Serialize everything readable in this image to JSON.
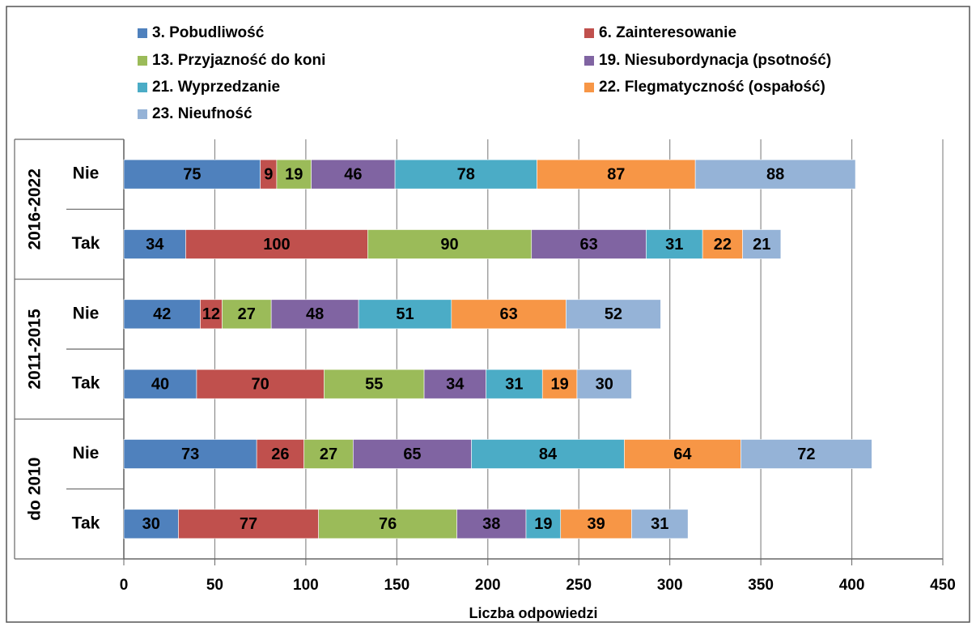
{
  "chart_data": {
    "type": "stacked_barh",
    "x_label": "Liczba odpowiedzi",
    "groups": [
      "2016-2022",
      "2011-2015",
      "do 2010"
    ],
    "categories": [
      "Nie",
      "Tak",
      "Nie",
      "Tak",
      "Nie",
      "Tak"
    ],
    "series": [
      {
        "name": "3. Pobudliwość",
        "color": "#4f81bd",
        "values": [
          75,
          34,
          42,
          40,
          73,
          30
        ]
      },
      {
        "name": "6. Zainteresowanie",
        "color": "#c0504d",
        "values": [
          9,
          100,
          12,
          70,
          26,
          77
        ]
      },
      {
        "name": "13. Przyjazność do koni",
        "color": "#9bbb59",
        "values": [
          19,
          90,
          27,
          55,
          27,
          76
        ]
      },
      {
        "name": "19. Niesubordynacja (psotność)",
        "color": "#8064a2",
        "values": [
          46,
          63,
          48,
          34,
          65,
          38
        ]
      },
      {
        "name": "21. Wyprzedzanie",
        "color": "#4bacc6",
        "values": [
          78,
          31,
          51,
          31,
          84,
          19
        ]
      },
      {
        "name": "22. Flegmatyczność (ospałość)",
        "color": "#f79646",
        "values": [
          87,
          22,
          63,
          19,
          64,
          39
        ]
      },
      {
        "name": "23. Nieufność",
        "color": "#95b3d7",
        "values": [
          88,
          21,
          52,
          30,
          72,
          31
        ]
      }
    ],
    "xlim": [
      0,
      450
    ],
    "xticks": [
      0,
      50,
      100,
      150,
      200,
      250,
      300,
      350,
      400,
      450
    ],
    "grid": true,
    "legend": "top"
  }
}
